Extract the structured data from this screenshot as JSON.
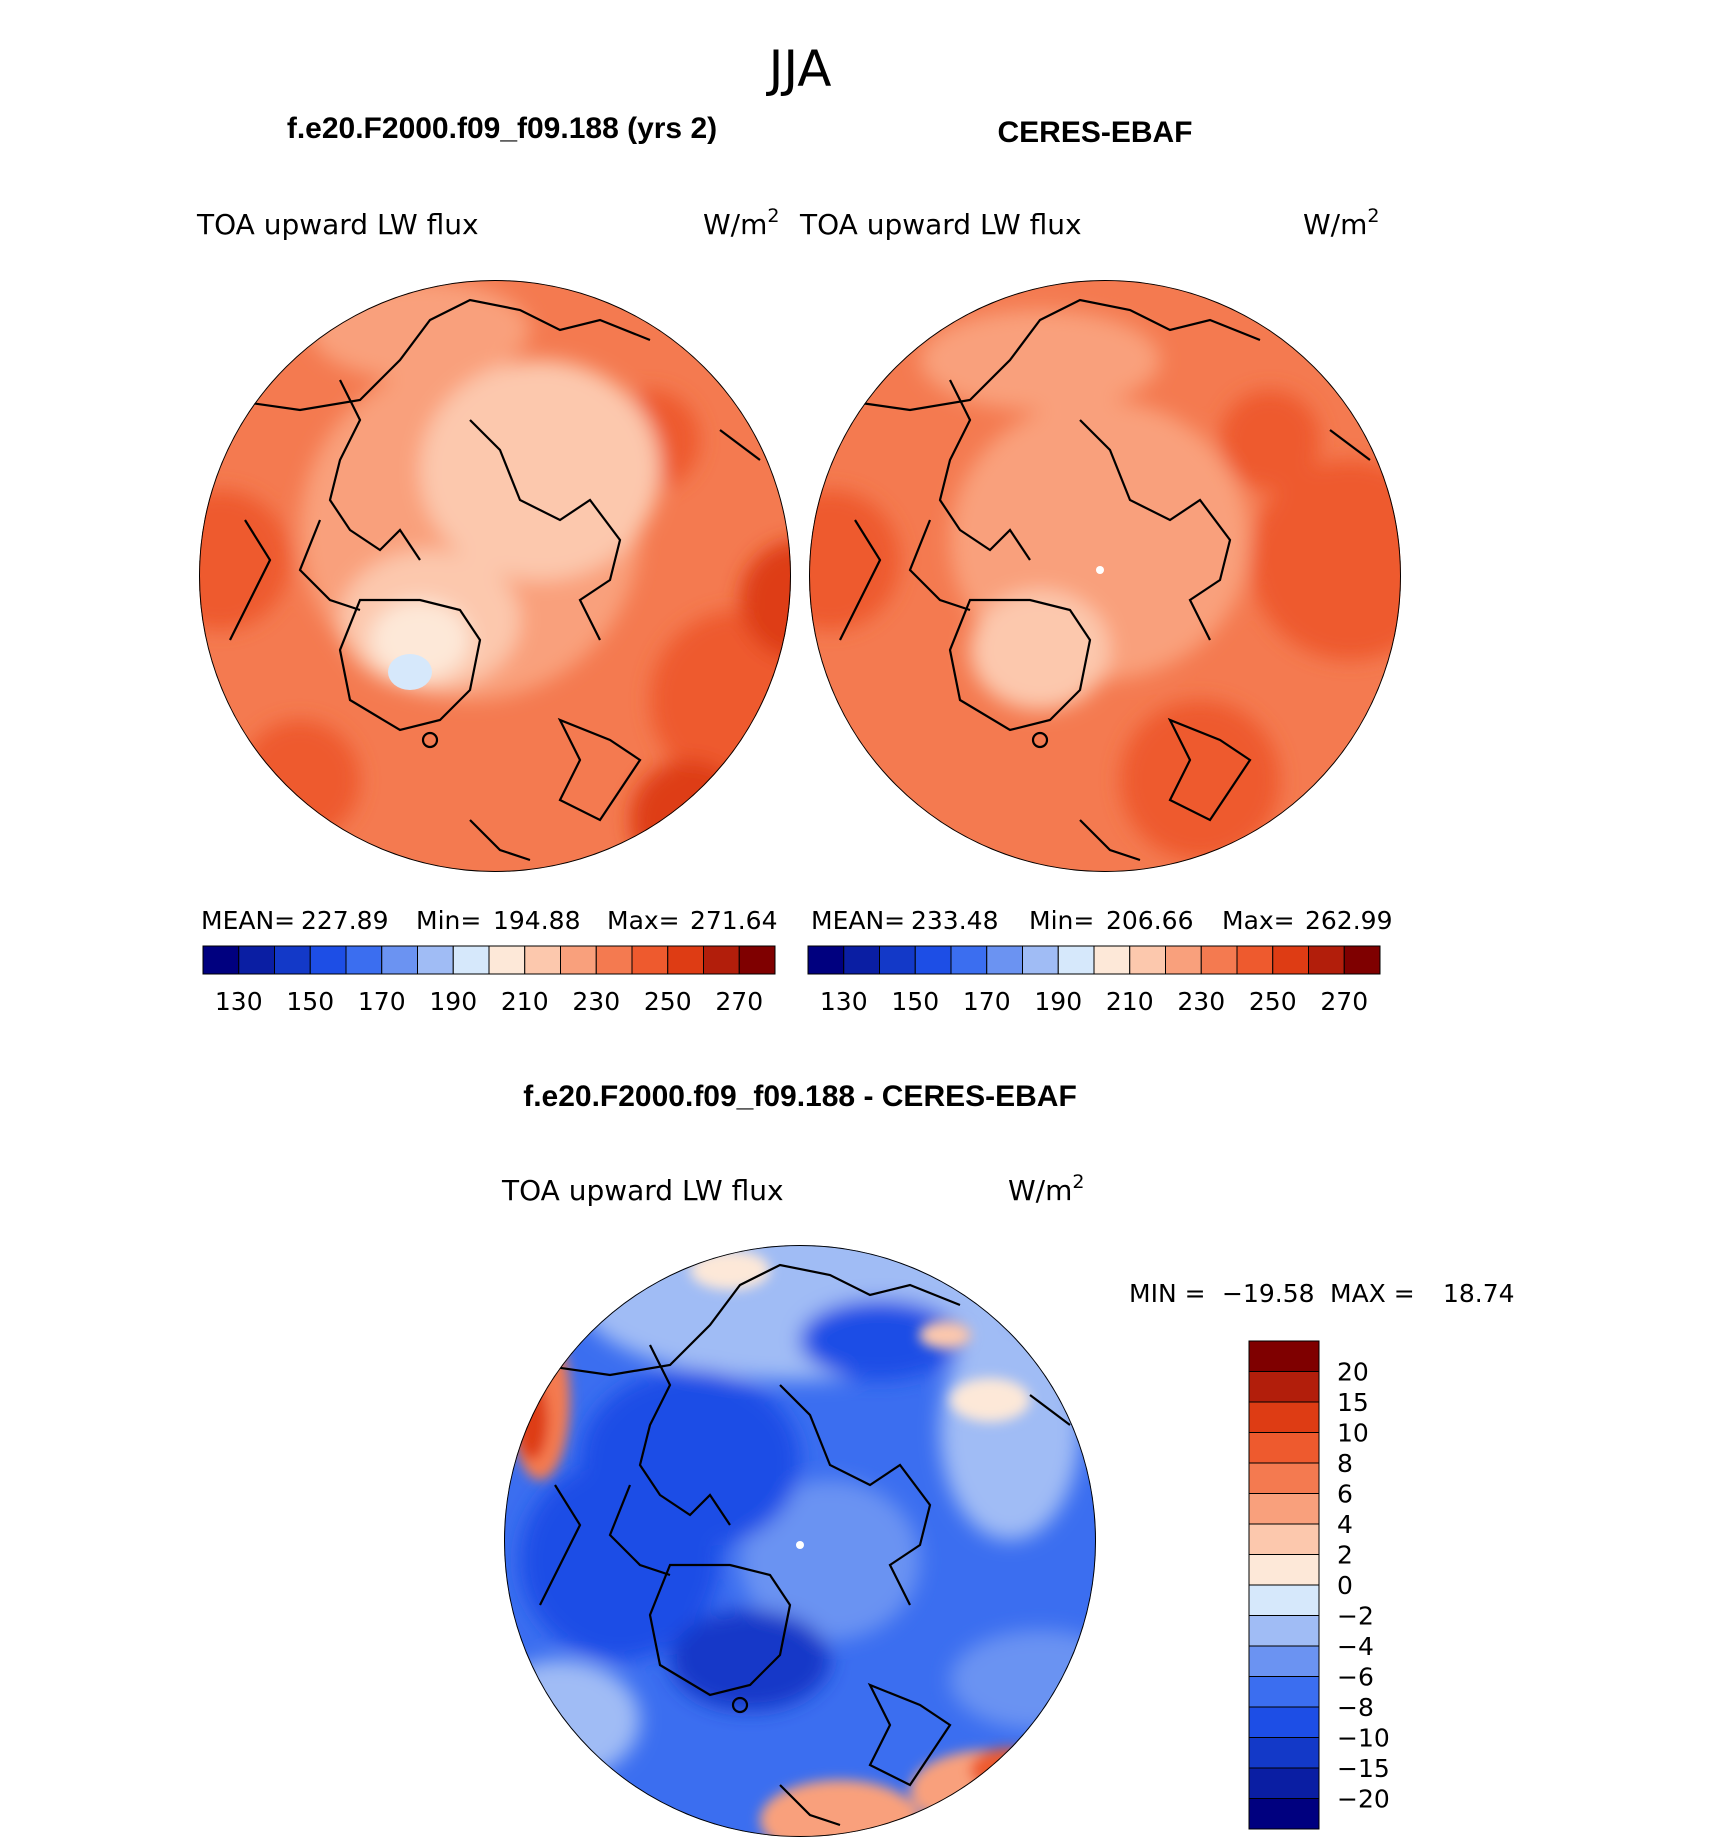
{
  "figure": {
    "season_title": "JJA"
  },
  "chart_data": [
    {
      "type": "heatmap",
      "projection": "north-polar-stereographic",
      "title": "f.e20.F2000.f09_f09.188 (yrs 2)",
      "left_label": "TOA upward LW flux",
      "units_base": "W/m",
      "units_exp": "2",
      "stats": {
        "mean_label": "MEAN=",
        "mean": "227.89",
        "min_label": "Min=",
        "min": "194.88",
        "max_label": "Max=",
        "max": "271.64"
      },
      "colorbar": {
        "orientation": "horizontal",
        "levels": [
          130,
          140,
          150,
          160,
          170,
          180,
          190,
          200,
          210,
          220,
          230,
          240,
          250,
          260,
          270
        ],
        "tick_labels": [
          "130",
          "150",
          "170",
          "190",
          "210",
          "230",
          "250",
          "270"
        ]
      }
    },
    {
      "type": "heatmap",
      "projection": "north-polar-stereographic",
      "title": "CERES-EBAF",
      "left_label": "TOA upward LW flux",
      "units_base": "W/m",
      "units_exp": "2",
      "stats": {
        "mean_label": "MEAN=",
        "mean": "233.48",
        "min_label": "Min=",
        "min": "206.66",
        "max_label": "Max=",
        "max": "262.99"
      },
      "colorbar": {
        "orientation": "horizontal",
        "levels": [
          130,
          140,
          150,
          160,
          170,
          180,
          190,
          200,
          210,
          220,
          230,
          240,
          250,
          260,
          270
        ],
        "tick_labels": [
          "130",
          "150",
          "170",
          "190",
          "210",
          "230",
          "250",
          "270"
        ]
      }
    },
    {
      "type": "heatmap",
      "projection": "north-polar-stereographic",
      "title": "f.e20.F2000.f09_f09.188 - CERES-EBAF",
      "left_label": "TOA upward LW flux",
      "units_base": "W/m",
      "units_exp": "2",
      "stats": {
        "min_label": "MIN =",
        "min": "−19.58",
        "max_label": "MAX =",
        "max": "18.74"
      },
      "colorbar": {
        "orientation": "vertical",
        "levels": [
          -20,
          -15,
          -10,
          -8,
          -6,
          -4,
          -2,
          0,
          2,
          4,
          6,
          8,
          10,
          15,
          20
        ],
        "tick_labels": [
          "20",
          "15",
          "10",
          "8",
          "6",
          "4",
          "2",
          "0",
          "−2",
          "−4",
          "−6",
          "−8",
          "−10",
          "−15",
          "−20"
        ]
      }
    }
  ],
  "palettes": {
    "blue_red_16": [
      "#00007f",
      "#0a1ea3",
      "#1339c8",
      "#1d4ee6",
      "#3b6ef0",
      "#6b93f2",
      "#a0bcf5",
      "#d6e8fb",
      "#fde8d8",
      "#fcc8ad",
      "#f9a07c",
      "#f47a50",
      "#ee5a2e",
      "#de3c14",
      "#b21e0b",
      "#7f0000"
    ]
  }
}
